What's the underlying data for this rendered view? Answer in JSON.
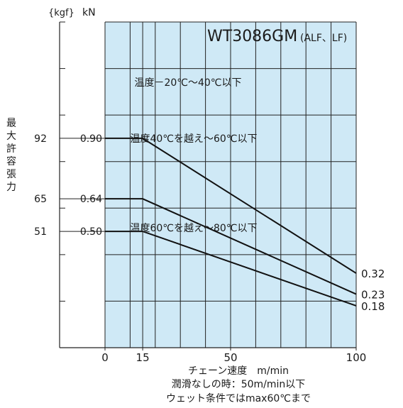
{
  "chart_data": {
    "type": "line",
    "title": "WT3086GM",
    "title_suffix": "(ALF、LF)",
    "ylabel": "最大許容張力",
    "y_unit_left": "{kgf}",
    "y_unit_right": "kN",
    "xlabel": "チェーン速度　m/min",
    "notes": [
      "潤滑なしの時：50m/min以下",
      "ウェット条件ではmax60℃まで"
    ],
    "xlim": [
      0,
      100
    ],
    "ylim": [
      0,
      1.4
    ],
    "x_ticks": [
      0,
      15,
      50,
      100
    ],
    "y_ticks": [
      {
        "kN": "0.90",
        "kgf": "92",
        "value": 0.9
      },
      {
        "kN": "0.64",
        "kgf": "65",
        "value": 0.64
      },
      {
        "kN": "0.50",
        "kgf": "51",
        "value": 0.5
      }
    ],
    "grid": true,
    "background": "#cfe9f6",
    "series": [
      {
        "name": "温度－20℃～40℃以下",
        "x": [
          0,
          15,
          100
        ],
        "y": [
          0.9,
          0.9,
          0.32
        ],
        "end_label": "0.32"
      },
      {
        "name": "温度40℃を越え～60℃以下",
        "x": [
          0,
          15,
          100
        ],
        "y": [
          0.64,
          0.64,
          0.23
        ],
        "end_label": "0.23"
      },
      {
        "name": "温度60℃を越え～80℃以下",
        "x": [
          0,
          15,
          100
        ],
        "y": [
          0.5,
          0.5,
          0.18
        ],
        "end_label": "0.18"
      }
    ]
  }
}
